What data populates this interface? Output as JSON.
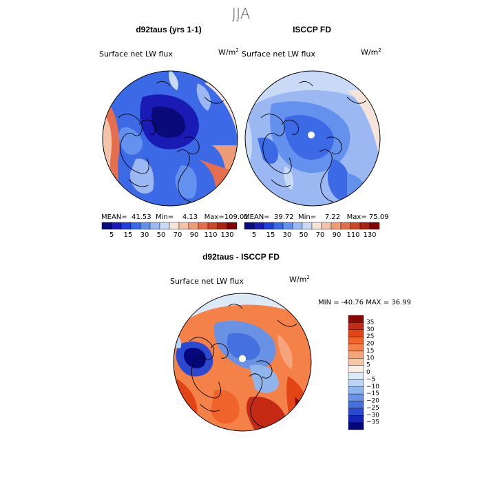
{
  "main_title": "JJA",
  "units_label": "W/m",
  "units_exp": "2",
  "panels": [
    {
      "title": "d92taus (yrs 1-1)",
      "var_label": "Surface net LW flux",
      "mean_label": "MEAN=",
      "mean": "41.53",
      "min_label": "Min=",
      "min": "4.13",
      "max_label": "Max=",
      "max": "109.01"
    },
    {
      "title": "ISCCP FD",
      "var_label": "Surface net LW flux",
      "mean_label": "MEAN=",
      "mean": "39.72",
      "min_label": "Min=",
      "min": "7.22",
      "max_label": "Max=",
      "max": "75.09"
    }
  ],
  "diff_panel": {
    "title": "d92taus - ISCCP FD",
    "var_label": "Surface net LW flux",
    "minmax_text": "MIN = -40.76 MAX =  36.99"
  },
  "chart_data": [
    {
      "type": "heatmap",
      "title": "d92taus (yrs 1-1)",
      "subtitle": "Surface net LW flux",
      "units": "W/m2",
      "projection": "north polar stereographic",
      "colorbar_ticks": [
        5,
        15,
        30,
        50,
        70,
        90,
        110,
        130
      ],
      "stats": {
        "mean": 41.53,
        "min": 4.13,
        "max": 109.01
      }
    },
    {
      "type": "heatmap",
      "title": "ISCCP FD",
      "subtitle": "Surface net LW flux",
      "units": "W/m2",
      "projection": "north polar stereographic",
      "colorbar_ticks": [
        5,
        15,
        30,
        50,
        70,
        90,
        110,
        130
      ],
      "stats": {
        "mean": 39.72,
        "min": 7.22,
        "max": 75.09
      }
    },
    {
      "type": "heatmap",
      "title": "d92taus - ISCCP FD",
      "subtitle": "Surface net LW flux",
      "units": "W/m2",
      "projection": "north polar stereographic",
      "colorbar_ticks": [
        35,
        30,
        25,
        20,
        15,
        10,
        5,
        0,
        -5,
        -10,
        -15,
        -20,
        -25,
        -30,
        -35
      ],
      "stats": {
        "min": -40.76,
        "max": 36.99
      }
    }
  ],
  "colors": {
    "abs_scale": [
      "#0a0a7a",
      "#1a1ab4",
      "#2040d8",
      "#3c6ae6",
      "#6490ee",
      "#9cb8f2",
      "#c8daf6",
      "#f6e4da",
      "#f4c4aa",
      "#ee9c78",
      "#e46e4e",
      "#cc4628",
      "#a82410",
      "#7c0606"
    ],
    "diff_scale_top_to_bottom": [
      "#8c0808",
      "#c42a14",
      "#e24416",
      "#f0642c",
      "#f48248",
      "#f6a47c",
      "#f8c4a6",
      "#faeee6",
      "#dceaf8",
      "#bcd4f4",
      "#90b4ec",
      "#6a92e4",
      "#4470e0",
      "#2a48d0",
      "#1424b4",
      "#06067c"
    ]
  }
}
